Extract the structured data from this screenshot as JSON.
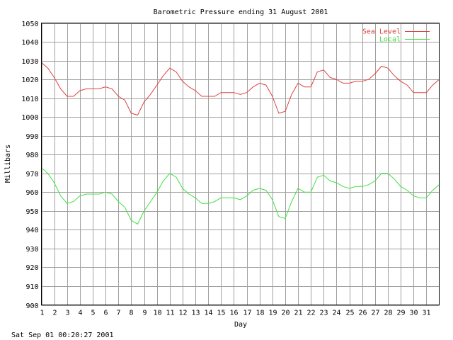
{
  "timestamp": "Sat Sep 01 00:20:27 2001",
  "chart_data": {
    "type": "line",
    "title": "Barometric Pressure ending 31 August 2001",
    "xlabel": "Day",
    "ylabel": "Millibars",
    "xlim": [
      1,
      32
    ],
    "ylim": [
      900,
      1050
    ],
    "x_ticks": [
      "1",
      "2",
      "3",
      "4",
      "5",
      "6",
      "7",
      "8",
      "9",
      "10",
      "11",
      "12",
      "13",
      "14",
      "15",
      "16",
      "17",
      "18",
      "19",
      "20",
      "21",
      "22",
      "23",
      "24",
      "25",
      "26",
      "27",
      "28",
      "29",
      "30",
      "31"
    ],
    "y_ticks": [
      900,
      910,
      920,
      930,
      940,
      950,
      960,
      970,
      980,
      990,
      1000,
      1010,
      1020,
      1030,
      1040,
      1050
    ],
    "grid": true,
    "legend": "top-right",
    "colors": {
      "Sea Level": "#e04040",
      "Local": "#40e040"
    },
    "x": [
      1,
      1.5,
      2,
      2.5,
      3,
      3.5,
      4,
      4.5,
      5,
      5.5,
      6,
      6.5,
      7,
      7.5,
      8,
      8.5,
      9,
      9.5,
      10,
      10.5,
      11,
      11.5,
      12,
      12.5,
      13,
      13.5,
      14,
      14.5,
      15,
      15.5,
      16,
      16.5,
      17,
      17.5,
      18,
      18.5,
      19,
      19.5,
      20,
      20.5,
      21,
      21.5,
      22,
      22.5,
      23,
      23.5,
      24,
      24.5,
      25,
      25.5,
      26,
      26.5,
      27,
      27.5,
      28,
      28.5,
      29,
      29.5,
      30,
      30.5,
      31,
      31.5,
      32
    ],
    "series": [
      {
        "name": "Sea Level",
        "values": [
          1029,
          1026,
          1021,
          1015,
          1011,
          1011,
          1014,
          1015,
          1015,
          1015,
          1016,
          1015,
          1011,
          1009,
          1002,
          1001,
          1008,
          1012,
          1017,
          1022,
          1026,
          1024,
          1019,
          1016,
          1014,
          1011,
          1011,
          1011,
          1013,
          1013,
          1013,
          1012,
          1013,
          1016,
          1018,
          1017,
          1011,
          1002,
          1003,
          1012,
          1018,
          1016,
          1016,
          1024,
          1025,
          1021,
          1020,
          1018,
          1018,
          1019,
          1019,
          1020,
          1023,
          1027,
          1026,
          1022,
          1019,
          1017,
          1013,
          1013,
          1013,
          1017,
          1020
        ]
      },
      {
        "name": "Local",
        "values": [
          973,
          970,
          965,
          958,
          954,
          955,
          958,
          959,
          959,
          959,
          960,
          959,
          955,
          952,
          945,
          943,
          950,
          955,
          960,
          966,
          970,
          968,
          962,
          959,
          957,
          954,
          954,
          955,
          957,
          957,
          957,
          956,
          958,
          961,
          962,
          961,
          956,
          947,
          946,
          955,
          962,
          960,
          960,
          968,
          969,
          966,
          965,
          963,
          962,
          963,
          963,
          964,
          966,
          970,
          970,
          967,
          963,
          961,
          958,
          957,
          957,
          961,
          964
        ]
      }
    ]
  }
}
